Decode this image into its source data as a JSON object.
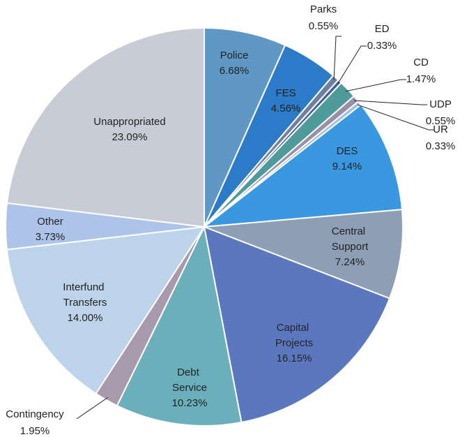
{
  "chart_data": {
    "type": "pie",
    "categories": [
      "Police",
      "FES",
      "Parks",
      "ED",
      "CD",
      "UDP",
      "UR",
      "DES",
      "Central Support",
      "Capital Projects",
      "Debt Service",
      "Contingency",
      "Interfund Transfers",
      "Other",
      "Unappropriated"
    ],
    "values": [
      6.68,
      4.56,
      0.55,
      0.33,
      1.47,
      0.55,
      0.33,
      9.14,
      7.24,
      16.15,
      10.23,
      1.95,
      14.0,
      3.73,
      23.09
    ],
    "value_labels": [
      "6.68%",
      "4.56%",
      "0.55%",
      "0.33%",
      "1.47%",
      "0.55%",
      "0.33%",
      "9.14%",
      "7.24%",
      "16.15%",
      "10.23%",
      "1.95%",
      "14.00%",
      "3.73%",
      "23.09%"
    ],
    "colors": [
      "#5f97c5",
      "#2b7bc8",
      "#6f7fa0",
      "#3f5f9f",
      "#4f9a9a",
      "#9a8fa8",
      "#a0c0e0",
      "#3a98e0",
      "#8e9fb5",
      "#5b78bf",
      "#6aafba",
      "#a89aac",
      "#bcd3ea",
      "#adc4e8",
      "#c8ccd6"
    ]
  }
}
